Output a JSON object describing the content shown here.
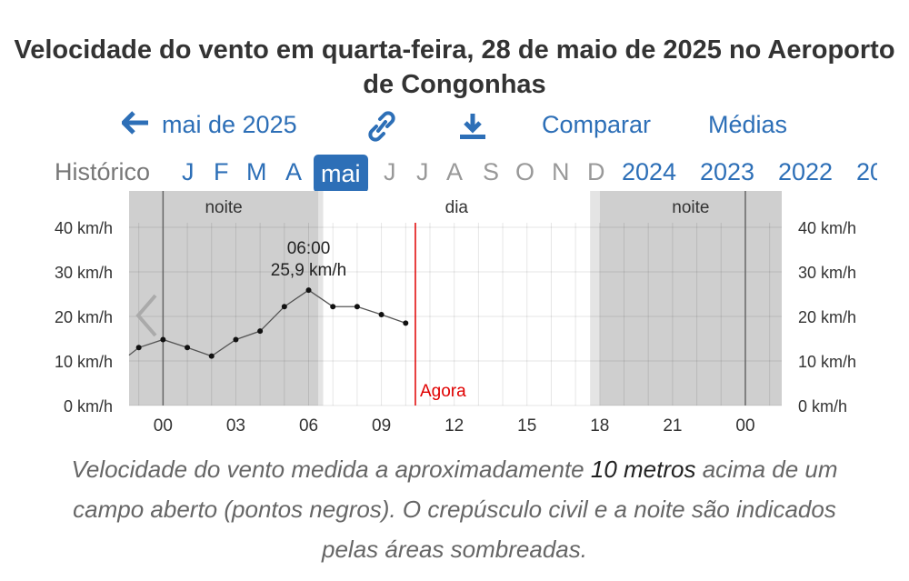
{
  "title": "Velocidade do vento em quarta-feira, 28 de maio de 2025 no Aeroporto de Congonhas",
  "nav": {
    "prev_month_label": "mai de 2025",
    "compare_label": "Comparar",
    "averages_label": "Médias",
    "link_icon": "link-icon",
    "download_icon": "download-icon",
    "arrow_icon": "arrow-left-icon"
  },
  "months": {
    "history_label": "Histórico",
    "items": [
      {
        "label": "J",
        "state": "link"
      },
      {
        "label": "F",
        "state": "link"
      },
      {
        "label": "M",
        "state": "link"
      },
      {
        "label": "A",
        "state": "link"
      },
      {
        "label": "mai",
        "state": "active"
      },
      {
        "label": "J",
        "state": "dim"
      },
      {
        "label": "J",
        "state": "dim"
      },
      {
        "label": "A",
        "state": "dim"
      },
      {
        "label": "S",
        "state": "dim"
      },
      {
        "label": "O",
        "state": "dim"
      },
      {
        "label": "N",
        "state": "dim"
      },
      {
        "label": "D",
        "state": "dim"
      }
    ],
    "years": [
      "2024",
      "2023",
      "2022",
      "20"
    ]
  },
  "chart_data": {
    "type": "line",
    "y_unit": "km/h",
    "ylim": [
      0,
      40
    ],
    "y_ticks": [
      "0 km/h",
      "10 km/h",
      "20 km/h",
      "30 km/h",
      "40 km/h"
    ],
    "x_range_hours": [
      -1.4,
      25.5
    ],
    "x_ticks": [
      {
        "hour": 0,
        "label": "00"
      },
      {
        "hour": 3,
        "label": "03"
      },
      {
        "hour": 6,
        "label": "06"
      },
      {
        "hour": 9,
        "label": "09"
      },
      {
        "hour": 12,
        "label": "12"
      },
      {
        "hour": 15,
        "label": "15"
      },
      {
        "hour": 18,
        "label": "18"
      },
      {
        "hour": 21,
        "label": "21"
      },
      {
        "hour": 24,
        "label": "00"
      }
    ],
    "series": [
      {
        "x": [
          -1.4,
          -1,
          0,
          1,
          2,
          3,
          4,
          5,
          6,
          7,
          8,
          9,
          10
        ],
        "values": [
          11.3,
          13.0,
          14.8,
          13.0,
          11.1,
          14.8,
          16.7,
          22.2,
          25.9,
          22.2,
          22.2,
          20.4,
          18.5
        ]
      }
    ],
    "periods": [
      {
        "label": "noite",
        "start": -1.4,
        "end": 6.4,
        "twilight_end": 6.6
      },
      {
        "label": "dia",
        "start": 6.6,
        "end": 17.6
      },
      {
        "label": "noite",
        "start": 18.0,
        "end": 25.5,
        "twilight_start": 17.6
      }
    ],
    "now_hour": 10.4,
    "now_label": "Agora",
    "tooltip": {
      "time": "06:00",
      "value": "25,9 km/h",
      "hour": 6,
      "y": 25.9
    },
    "grid": true
  },
  "caption": {
    "part1": "Velocidade do vento medida a aproximadamente ",
    "bold": "10 metros",
    "part2": " acima de um campo aberto (pontos negros). O crepúsculo civil e a noite são indicados pelas áreas sombreadas."
  }
}
